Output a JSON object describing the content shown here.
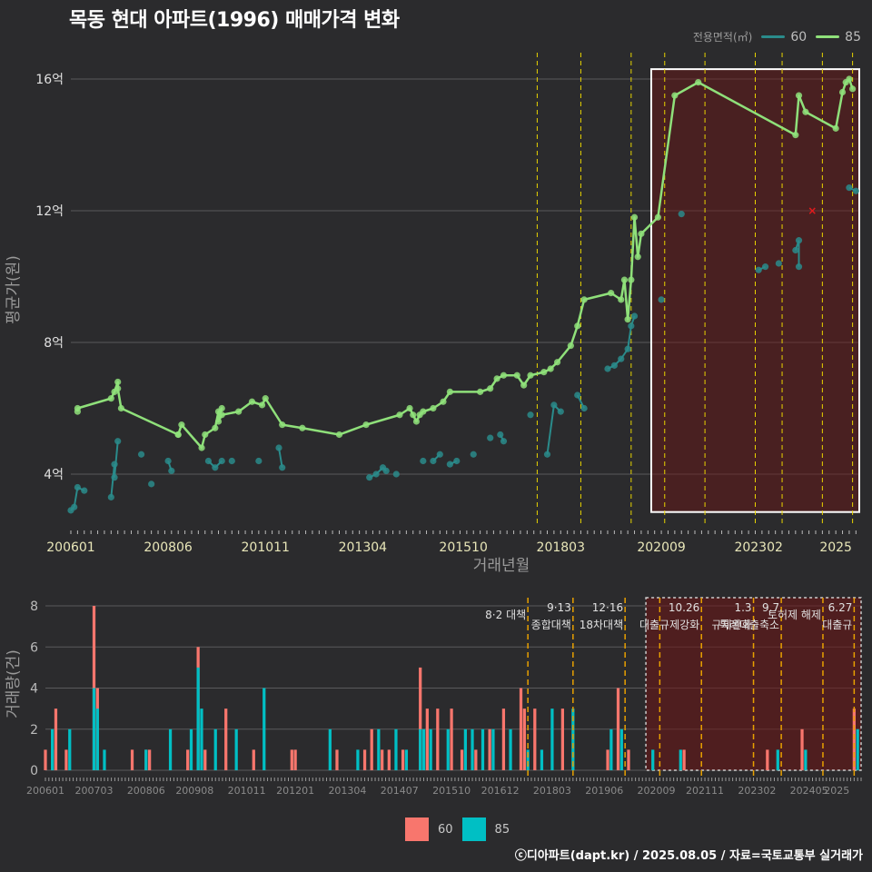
{
  "title": "목동 현대 아파트(1996) 매매가격 변화",
  "legend_top": {
    "title": "전용면적(㎡)",
    "items": [
      {
        "label": "60",
        "color": "#2a8b8b"
      },
      {
        "label": "85",
        "color": "#8fe07a"
      }
    ]
  },
  "legend_bottom": {
    "items": [
      {
        "label": "60",
        "color": "#f8766d"
      },
      {
        "label": "85",
        "color": "#00bfc4"
      }
    ]
  },
  "footer": "ⓒ디아파트(dapt.kr) / 2025.08.05 / 자료=국토교통부 실거래가",
  "chart_data": [
    {
      "type": "line",
      "xlabel": "거래년월",
      "ylabel": "평균가(원)",
      "x_ticks": [
        "200601",
        "200806",
        "201011",
        "201304",
        "201510",
        "201803",
        "202009",
        "202302",
        "2025"
      ],
      "y_ticks": [
        "4억",
        "8억",
        "12억",
        "16억"
      ],
      "y_tick_values": [
        4,
        8,
        12,
        16
      ],
      "ylim": [
        2.4,
        16.8
      ],
      "xlim": [
        "2006-01",
        "2025-08"
      ],
      "grid": true,
      "policy_lines": [
        "2017-08",
        "2018-09",
        "2019-12",
        "2020-10",
        "2021-10",
        "2023-01",
        "2023-09",
        "2024-09",
        "2025-06"
      ],
      "highlight": {
        "from": "2020-06",
        "to": "2025-08",
        "ymin": 2.85,
        "ymax": 16.3
      },
      "series": [
        {
          "name": "85",
          "color": "#8fe07a",
          "points": [
            [
              "2006-03",
              5.9
            ],
            [
              "2006-03",
              6.0
            ],
            [
              "2007-01",
              6.3
            ],
            [
              "2007-02",
              6.5
            ],
            [
              "2007-03",
              6.8
            ],
            [
              "2007-03",
              6.6
            ],
            [
              "2007-04",
              6.0
            ],
            [
              "2008-09",
              5.2
            ],
            [
              "2008-09",
              5.2
            ],
            [
              "2008-10",
              5.5
            ],
            [
              "2009-04",
              4.8
            ],
            [
              "2009-05",
              5.2
            ],
            [
              "2009-08",
              5.4
            ],
            [
              "2009-09",
              5.9
            ],
            [
              "2009-10",
              6.0
            ],
            [
              "2009-09",
              5.6
            ],
            [
              "2009-10",
              5.8
            ],
            [
              "2010-03",
              5.9
            ],
            [
              "2010-07",
              6.2
            ],
            [
              "2010-10",
              6.1
            ],
            [
              "2010-11",
              6.3
            ],
            [
              "2011-04",
              5.5
            ],
            [
              "2011-10",
              5.4
            ],
            [
              "2012-09",
              5.2
            ],
            [
              "2013-05",
              5.5
            ],
            [
              "2014-03",
              5.8
            ],
            [
              "2014-06",
              6.0
            ],
            [
              "2014-07",
              5.8
            ],
            [
              "2014-08",
              5.6
            ],
            [
              "2014-09",
              5.8
            ],
            [
              "2014-10",
              5.9
            ],
            [
              "2015-01",
              6.0
            ],
            [
              "2015-04",
              6.2
            ],
            [
              "2015-06",
              6.5
            ],
            [
              "2016-03",
              6.5
            ],
            [
              "2016-06",
              6.6
            ],
            [
              "2016-08",
              6.9
            ],
            [
              "2016-10",
              7.0
            ],
            [
              "2017-02",
              7.0
            ],
            [
              "2017-04",
              6.7
            ],
            [
              "2017-06",
              7.0
            ],
            [
              "2017-10",
              7.1
            ],
            [
              "2017-12",
              7.2
            ],
            [
              "2018-02",
              7.4
            ],
            [
              "2018-06",
              7.9
            ],
            [
              "2018-08",
              8.5
            ],
            [
              "2018-10",
              9.3
            ],
            [
              "2019-06",
              9.5
            ],
            [
              "2019-09",
              9.3
            ],
            [
              "2019-10",
              9.9
            ],
            [
              "2019-11",
              8.7
            ],
            [
              "2019-12",
              9.9
            ],
            [
              "2020-01",
              11.8
            ],
            [
              "2020-02",
              10.6
            ],
            [
              "2020-03",
              11.3
            ],
            [
              "2020-08",
              11.8
            ],
            [
              "2021-01",
              15.5
            ],
            [
              "2021-08",
              15.9
            ],
            [
              "2024-01",
              14.3
            ],
            [
              "2024-02",
              15.5
            ],
            [
              "2024-04",
              15.0
            ],
            [
              "2025-01",
              14.5
            ],
            [
              "2025-03",
              15.6
            ],
            [
              "2025-04",
              15.9
            ],
            [
              "2025-05",
              16.0
            ],
            [
              "2025-06",
              15.7
            ]
          ]
        },
        {
          "name": "60",
          "color": "#2a8b8b",
          "points": [
            [
              "2006-01",
              2.9
            ],
            [
              "2006-02",
              3.0
            ],
            [
              "2006-03",
              3.6
            ],
            [
              "2006-05",
              3.5
            ],
            [
              "2007-01",
              3.3
            ],
            [
              "2007-02",
              4.3
            ],
            [
              "2007-02",
              3.9
            ],
            [
              "2007-03",
              5.0
            ],
            [
              "2007-10",
              4.6
            ],
            [
              "2008-01",
              3.7
            ],
            [
              "2008-06",
              4.4
            ],
            [
              "2008-07",
              4.1
            ],
            [
              "2009-06",
              4.4
            ],
            [
              "2009-08",
              4.2
            ],
            [
              "2009-10",
              4.4
            ],
            [
              "2010-01",
              4.4
            ],
            [
              "2010-09",
              4.4
            ],
            [
              "2011-03",
              4.8
            ],
            [
              "2011-04",
              4.2
            ],
            [
              "2013-06",
              3.9
            ],
            [
              "2013-08",
              4.0
            ],
            [
              "2013-10",
              4.2
            ],
            [
              "2013-11",
              4.1
            ],
            [
              "2014-02",
              4.0
            ],
            [
              "2014-10",
              4.4
            ],
            [
              "2015-01",
              4.4
            ],
            [
              "2015-03",
              4.6
            ],
            [
              "2015-06",
              4.3
            ],
            [
              "2015-08",
              4.4
            ],
            [
              "2016-01",
              4.6
            ],
            [
              "2016-06",
              5.1
            ],
            [
              "2016-09",
              5.2
            ],
            [
              "2016-10",
              5.0
            ],
            [
              "2017-06",
              5.8
            ],
            [
              "2017-11",
              4.6
            ],
            [
              "2018-01",
              6.1
            ],
            [
              "2018-03",
              5.9
            ],
            [
              "2018-08",
              6.4
            ],
            [
              "2018-10",
              6.0
            ],
            [
              "2019-05",
              7.2
            ],
            [
              "2019-07",
              7.3
            ],
            [
              "2019-09",
              7.5
            ],
            [
              "2019-11",
              7.8
            ],
            [
              "2019-12",
              8.5
            ],
            [
              "2020-01",
              8.8
            ],
            [
              "2020-09",
              9.3
            ],
            [
              "2021-03",
              11.9
            ],
            [
              "2023-02",
              10.2
            ],
            [
              "2023-04",
              10.3
            ],
            [
              "2023-08",
              10.4
            ],
            [
              "2024-01",
              10.8
            ],
            [
              "2024-02",
              11.1
            ],
            [
              "2024-02",
              10.3
            ],
            [
              "2025-05",
              12.7
            ],
            [
              "2025-07",
              12.6
            ]
          ]
        }
      ],
      "annotations": [
        {
          "type": "marker",
          "symbol": "x",
          "x": "2024-06",
          "y": 12.0,
          "color": "#e31a1c"
        }
      ]
    },
    {
      "type": "bar",
      "ylabel": "거래량(건)",
      "x_ticks": [
        "200601",
        "200703",
        "200806",
        "200908",
        "201011",
        "201201",
        "201304",
        "201407",
        "201510",
        "201612",
        "201803",
        "201906",
        "202009",
        "202111",
        "202302",
        "202405",
        "2025"
      ],
      "y_ticks": [
        "0",
        "2",
        "4",
        "6",
        "8"
      ],
      "y_tick_values": [
        0,
        2,
        4,
        6,
        8
      ],
      "ylim": [
        0,
        8.4
      ],
      "xlim": [
        "2006-01",
        "2025-08"
      ],
      "highlight": {
        "from": "2020-06",
        "to": "2025-08"
      },
      "policy_lines": [
        {
          "x": "2017-08",
          "date": "",
          "label": "8·2 대책"
        },
        {
          "x": "2018-09",
          "date": "9·13",
          "label": "종합대책"
        },
        {
          "x": "2019-12",
          "date": "12·16",
          "label": "18차대책"
        },
        {
          "x": "2020-10",
          "date": "",
          "label": ""
        },
        {
          "x": "2021-10",
          "date": "10.26",
          "label": "대출규제강화"
        },
        {
          "x": "2023-01",
          "date": "1.3",
          "label": "규제완화"
        },
        {
          "x": "2023-09",
          "date": "9.7",
          "label": "특례대출축소"
        },
        {
          "x": "2024-09",
          "date": "",
          "label": "토허제 해제"
        },
        {
          "x": "2025-06",
          "date": "6.27",
          "label": "대출규"
        }
      ],
      "series": [
        {
          "name": "60",
          "color": "#f8766d",
          "values": [
            [
              "2006-01",
              1
            ],
            [
              "2006-03",
              1
            ],
            [
              "2006-04",
              3
            ],
            [
              "2006-07",
              1
            ],
            [
              "2007-03",
              8
            ],
            [
              "2007-04",
              4
            ],
            [
              "2008-02",
              1
            ],
            [
              "2008-06",
              1
            ],
            [
              "2008-07",
              1
            ],
            [
              "2009-06",
              1
            ],
            [
              "2009-09",
              6
            ],
            [
              "2009-11",
              1
            ],
            [
              "2010-05",
              3
            ],
            [
              "2011-01",
              1
            ],
            [
              "2011-12",
              1
            ],
            [
              "2012-01",
              1
            ],
            [
              "2013-01",
              1
            ],
            [
              "2013-09",
              1
            ],
            [
              "2013-11",
              2
            ],
            [
              "2014-02",
              1
            ],
            [
              "2014-04",
              1
            ],
            [
              "2014-08",
              1
            ],
            [
              "2015-01",
              5
            ],
            [
              "2015-03",
              3
            ],
            [
              "2015-06",
              3
            ],
            [
              "2015-10",
              3
            ],
            [
              "2016-01",
              1
            ],
            [
              "2016-05",
              1
            ],
            [
              "2016-09",
              2
            ],
            [
              "2017-01",
              3
            ],
            [
              "2017-06",
              4
            ],
            [
              "2017-07",
              3
            ],
            [
              "2017-10",
              3
            ],
            [
              "2018-06",
              3
            ],
            [
              "2019-07",
              1
            ],
            [
              "2019-10",
              4
            ],
            [
              "2020-01",
              1
            ],
            [
              "2021-05",
              1
            ],
            [
              "2023-05",
              1
            ],
            [
              "2024-03",
              2
            ],
            [
              "2025-06",
              3
            ]
          ]
        },
        {
          "name": "85",
          "color": "#00bfc4",
          "values": [
            [
              "2006-03",
              2
            ],
            [
              "2006-08",
              2
            ],
            [
              "2007-03",
              4
            ],
            [
              "2007-04",
              3
            ],
            [
              "2007-06",
              1
            ],
            [
              "2008-06",
              1
            ],
            [
              "2009-01",
              2
            ],
            [
              "2009-07",
              2
            ],
            [
              "2009-09",
              5
            ],
            [
              "2009-10",
              3
            ],
            [
              "2010-02",
              2
            ],
            [
              "2010-08",
              2
            ],
            [
              "2011-04",
              4
            ],
            [
              "2012-11",
              2
            ],
            [
              "2013-07",
              1
            ],
            [
              "2014-01",
              2
            ],
            [
              "2014-06",
              2
            ],
            [
              "2014-09",
              1
            ],
            [
              "2015-01",
              2
            ],
            [
              "2015-02",
              2
            ],
            [
              "2015-04",
              2
            ],
            [
              "2015-09",
              2
            ],
            [
              "2016-02",
              2
            ],
            [
              "2016-04",
              2
            ],
            [
              "2016-07",
              2
            ],
            [
              "2016-10",
              2
            ],
            [
              "2017-03",
              2
            ],
            [
              "2017-08",
              1
            ],
            [
              "2017-12",
              1
            ],
            [
              "2018-03",
              3
            ],
            [
              "2018-09",
              3
            ],
            [
              "2019-08",
              2
            ],
            [
              "2019-11",
              2
            ],
            [
              "2020-08",
              1
            ],
            [
              "2021-04",
              1
            ],
            [
              "2023-08",
              1
            ],
            [
              "2024-04",
              1
            ],
            [
              "2025-07",
              2
            ]
          ]
        }
      ]
    }
  ]
}
